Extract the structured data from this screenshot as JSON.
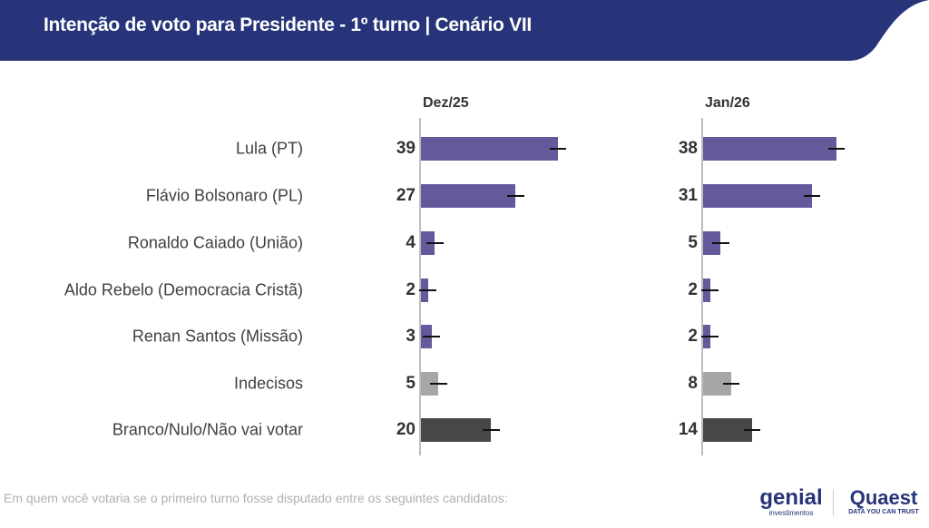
{
  "header": {
    "title": "Intenção de voto para Presidente - 1º turno | Cenário VII",
    "color": "#27347a"
  },
  "chart_data": {
    "type": "bar",
    "orientation": "horizontal",
    "categories": [
      "Lula (PT)",
      "Flávio Bolsonaro (PL)",
      "Ronaldo Caiado (União)",
      "Aldo Rebelo (Democracia Cristã)",
      "Renan Santos (Missão)",
      "Indecisos",
      "Branco/Nulo/Não vai votar"
    ],
    "series": [
      {
        "name": "Dez/25",
        "values": [
          39,
          27,
          4,
          2,
          3,
          5,
          20
        ]
      },
      {
        "name": "Jan/26",
        "values": [
          38,
          31,
          5,
          2,
          2,
          8,
          14
        ]
      }
    ],
    "error_margin": 2,
    "bar_colors": [
      "#635a9c",
      "#635a9c",
      "#635a9c",
      "#635a9c",
      "#635a9c",
      "#a6a6a6",
      "#474747"
    ]
  },
  "footnote": "Em quem você votaria se o primeiro turno fosse disputado entre os seguintes candidatos:",
  "logos": {
    "genial": "genial",
    "genial_sub": "investimentos",
    "quaest": "Quaest",
    "quaest_sub": "DATA YOU CAN TRUST"
  }
}
